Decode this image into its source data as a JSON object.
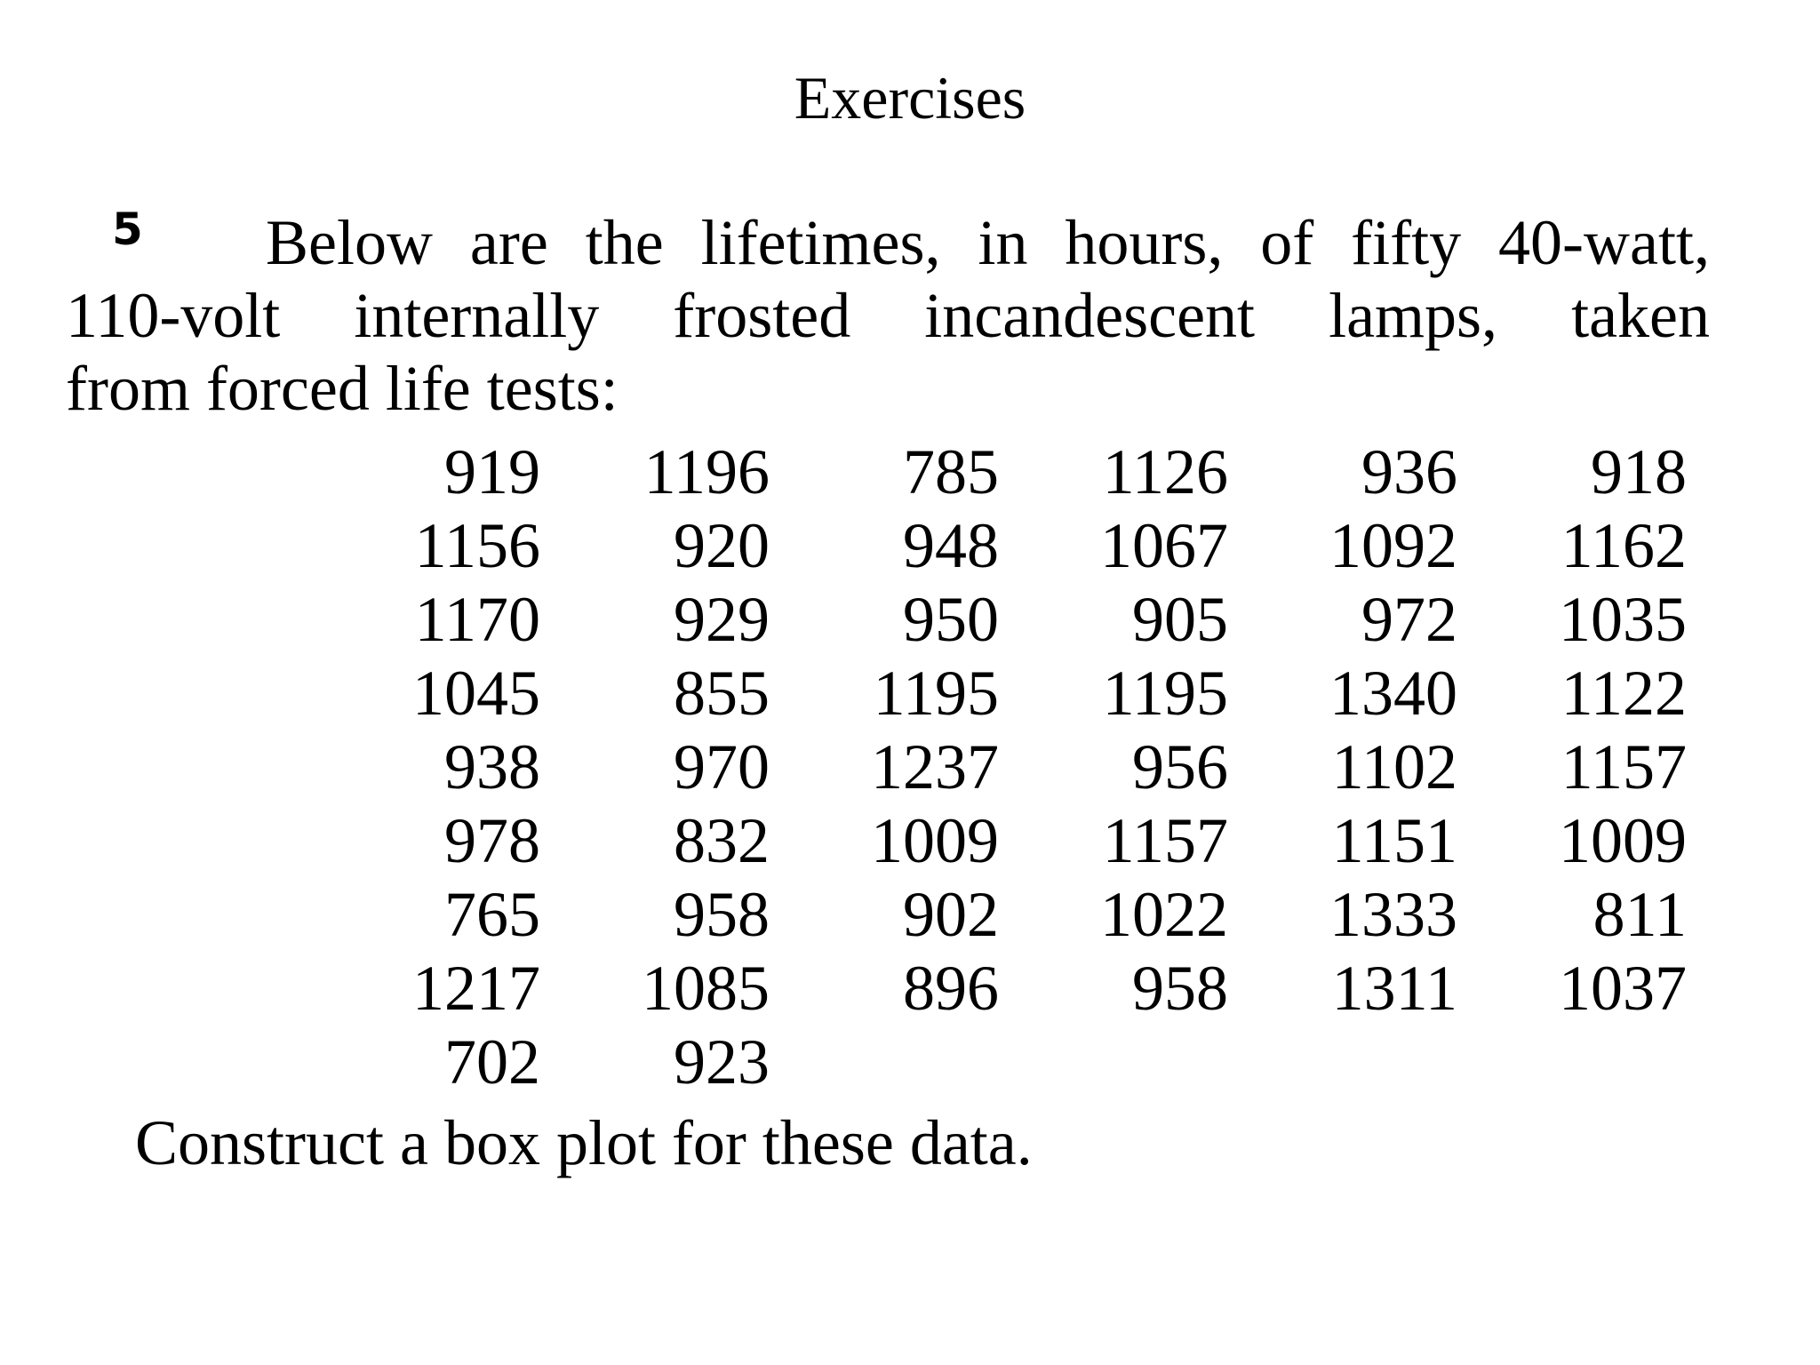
{
  "slide": {
    "title": "Exercises"
  },
  "exercise": {
    "number": "5",
    "intro_lines": [
      "Below are the lifetimes, in hours, of fifty 40-watt,",
      "110-volt internally frosted incandescent lamps, taken",
      "from forced life tests:"
    ],
    "data_rows": [
      [
        "919",
        "1196",
        "785",
        "1126",
        "936",
        "918"
      ],
      [
        "1156",
        "920",
        "948",
        "1067",
        "1092",
        "1162"
      ],
      [
        "1170",
        "929",
        "950",
        "905",
        "972",
        "1035"
      ],
      [
        "1045",
        "855",
        "1195",
        "1195",
        "1340",
        "1122"
      ],
      [
        "938",
        "970",
        "1237",
        "956",
        "1102",
        "1157"
      ],
      [
        "978",
        "832",
        "1009",
        "1157",
        "1151",
        "1009"
      ],
      [
        "765",
        "958",
        "902",
        "1022",
        "1333",
        "811"
      ],
      [
        "1217",
        "1085",
        "896",
        "958",
        "1311",
        "1037"
      ],
      [
        "702",
        "923",
        "",
        "",
        "",
        ""
      ]
    ],
    "closing": "Construct a box plot for these data."
  }
}
